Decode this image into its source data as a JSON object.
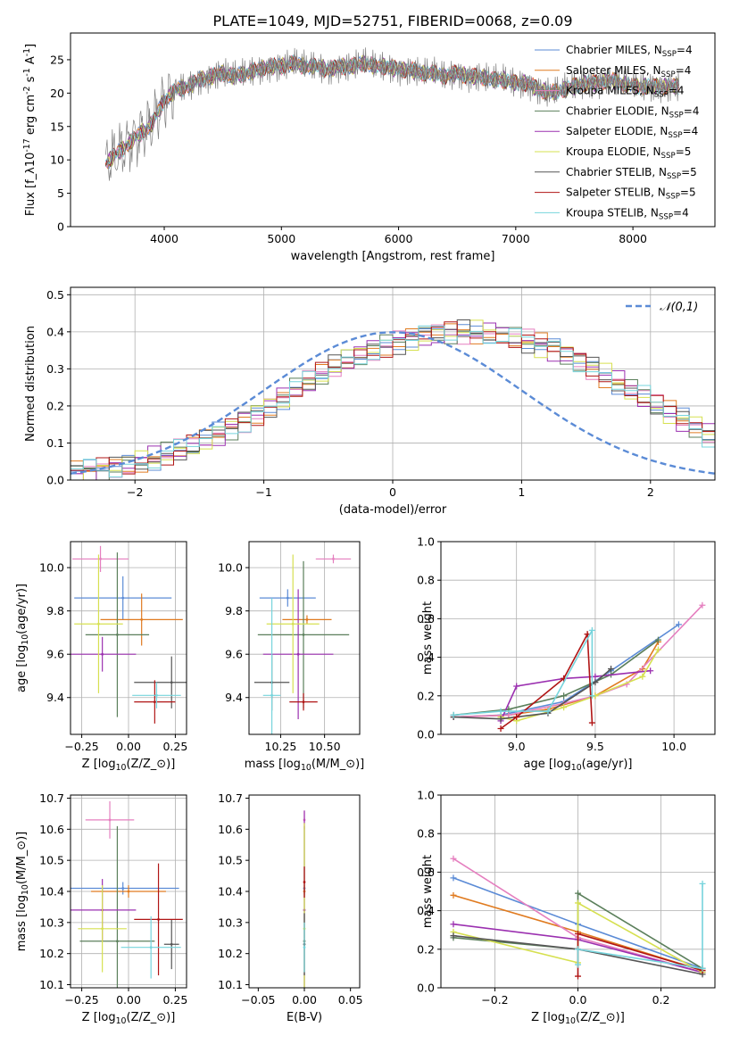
{
  "figure": {
    "title": "PLATE=1049, MJD=52751, FIBERID=0068, z=0.09"
  },
  "palette": {
    "Chabrier MILES": "#5b8bd6",
    "Salpeter MILES": "#e07b20",
    "Kroupa MILES": "#e57fbf",
    "Chabrier ELODIE": "#5b7f5b",
    "Salpeter ELODIE": "#9b30b0",
    "Kroupa ELODIE": "#d6e050",
    "Chabrier STELIB": "#555555",
    "Salpeter STELIB": "#b01515",
    "Kroupa STELIB": "#76d4dc"
  },
  "chart_data": [
    {
      "id": "spectrum",
      "type": "line",
      "xlabel": "wavelength [Angstrom, rest frame]",
      "ylabel": "Flux [f_λ10^{-17} erg cm^{-2} s^{-1} A^{-1}]",
      "xlim": [
        3200,
        8700
      ],
      "ylim": [
        0,
        29
      ],
      "xticks": [
        4000,
        5000,
        6000,
        7000,
        8000
      ],
      "yticks": [
        0,
        5,
        10,
        15,
        20,
        25
      ],
      "grid": false,
      "legend_position": "top-right",
      "legend": [
        {
          "model": "Chabrier MILES",
          "n": "4"
        },
        {
          "model": "Salpeter MILES",
          "n": "4"
        },
        {
          "model": "Kroupa MILES",
          "n": "4"
        },
        {
          "model": "Chabrier ELODIE",
          "n": "4"
        },
        {
          "model": "Salpeter ELODIE",
          "n": "4"
        },
        {
          "model": "Kroupa ELODIE",
          "n": "5"
        },
        {
          "model": "Chabrier STELIB",
          "n": "5"
        },
        {
          "model": "Salpeter STELIB",
          "n": "5"
        },
        {
          "model": "Kroupa STELIB",
          "n": "4"
        }
      ],
      "data_series": {
        "name": "data",
        "x": [
          3500,
          3600,
          3700,
          3800,
          3900,
          4000,
          4100,
          4200,
          4300,
          4400,
          4500,
          4600,
          4700,
          4800,
          4900,
          5000,
          5100,
          5200,
          5300,
          5400,
          5500,
          5600,
          5700,
          5800,
          5900,
          6000,
          6100,
          6200,
          6300,
          6400,
          6500,
          6600,
          6700,
          6800,
          6900,
          7000,
          7100,
          7200,
          7300,
          7400,
          7500,
          7600,
          7700,
          7800,
          7900,
          8000,
          8100,
          8200,
          8300,
          8400
        ],
        "y": [
          9.5,
          11,
          12.5,
          14,
          15.5,
          19,
          20.5,
          21,
          22,
          22.5,
          23,
          22.5,
          23,
          23.5,
          24,
          24,
          24.5,
          24,
          24,
          23.5,
          24,
          24,
          24.5,
          24,
          24,
          23.5,
          23.5,
          23,
          23,
          22.5,
          23,
          22.5,
          22.5,
          22,
          22,
          21.5,
          21.5,
          20.5,
          20,
          20.5,
          21,
          21.5,
          21.5,
          22,
          21.5,
          21,
          21,
          21,
          21,
          21
        ]
      }
    },
    {
      "id": "residuals",
      "type": "line",
      "xlabel": "(data-model)/error",
      "ylabel": "Normed distribution",
      "xlim": [
        -2.5,
        2.5
      ],
      "ylim": [
        0,
        0.52
      ],
      "xticks": [
        -2,
        -1,
        0,
        1,
        2
      ],
      "yticks": [
        0.0,
        0.1,
        0.2,
        0.3,
        0.4,
        0.5
      ],
      "grid": true,
      "legend_position": "top-right",
      "legend_label": "𝒩(0,1)",
      "reference_curve": {
        "mean": 0,
        "sigma": 1
      },
      "histogram": {
        "x_start": -2.5,
        "bin_width": 0.1,
        "values": [
          0.024,
          0.026,
          0.03,
          0.035,
          0.042,
          0.05,
          0.058,
          0.068,
          0.08,
          0.092,
          0.108,
          0.124,
          0.142,
          0.16,
          0.18,
          0.2,
          0.222,
          0.244,
          0.264,
          0.284,
          0.304,
          0.322,
          0.338,
          0.352,
          0.364,
          0.374,
          0.383,
          0.39,
          0.394,
          0.397,
          0.398,
          0.397,
          0.394,
          0.39,
          0.383,
          0.374,
          0.364,
          0.352,
          0.338,
          0.322,
          0.304,
          0.284,
          0.264,
          0.244,
          0.222,
          0.2,
          0.18,
          0.16,
          0.142,
          0.124
        ]
      }
    },
    {
      "id": "age-vs-Z",
      "type": "scatter",
      "xlabel": "Z [log_{10}(Z/Z_⊙)]",
      "ylabel": "age  [log_{10}(age/yr)]",
      "xlim": [
        -0.31,
        0.31
      ],
      "ylim": [
        9.23,
        10.12
      ],
      "xticks": [
        -0.25,
        0.0,
        0.25
      ],
      "xtick_labels": [
        "−0.25",
        "0.00",
        "0.25"
      ],
      "yticks": [
        9.4,
        9.6,
        9.8,
        10.0
      ],
      "grid": true,
      "points": [
        {
          "model": "Chabrier MILES",
          "x": -0.03,
          "y": 9.86,
          "xerr": 0.26,
          "yerr": 0.1
        },
        {
          "model": "Salpeter MILES",
          "x": 0.07,
          "y": 9.76,
          "xerr": 0.22,
          "yerr": 0.12
        },
        {
          "model": "Kroupa MILES",
          "x": -0.15,
          "y": 10.04,
          "xerr": 0.15,
          "yerr": 0.06
        },
        {
          "model": "Chabrier ELODIE",
          "x": -0.06,
          "y": 9.69,
          "xerr": 0.17,
          "yerr": 0.38
        },
        {
          "model": "Salpeter ELODIE",
          "x": -0.14,
          "y": 9.6,
          "xerr": 0.18,
          "yerr": 0.08
        },
        {
          "model": "Kroupa ELODIE",
          "x": -0.16,
          "y": 9.74,
          "xerr": 0.13,
          "yerr": 0.32
        },
        {
          "model": "Chabrier STELIB",
          "x": 0.23,
          "y": 9.47,
          "xerr": 0.2,
          "yerr": 0.12
        },
        {
          "model": "Salpeter STELIB",
          "x": 0.14,
          "y": 9.38,
          "xerr": 0.11,
          "yerr": 0.1
        },
        {
          "model": "Kroupa STELIB",
          "x": 0.15,
          "y": 9.41,
          "xerr": 0.13,
          "yerr": 0.06
        }
      ]
    },
    {
      "id": "age-vs-mass",
      "type": "scatter",
      "xlabel": "mass [log_{10}(M/M_⊙)]",
      "ylabel": "",
      "xlim": [
        10.07,
        10.7
      ],
      "ylim": [
        9.23,
        10.12
      ],
      "xticks": [
        10.25,
        10.5
      ],
      "xtick_labels": [
        "10.25",
        "10.50"
      ],
      "yticks": [
        9.4,
        9.6,
        9.8,
        10.0
      ],
      "grid": true,
      "points": [
        {
          "model": "Chabrier MILES",
          "x": 10.29,
          "y": 9.86,
          "xerr": 0.16,
          "yerr": 0.04
        },
        {
          "model": "Salpeter MILES",
          "x": 10.4,
          "y": 9.76,
          "xerr": 0.14,
          "yerr": 0.02
        },
        {
          "model": "Kroupa MILES",
          "x": 10.55,
          "y": 10.04,
          "xerr": 0.1,
          "yerr": 0.02
        },
        {
          "model": "Chabrier ELODIE",
          "x": 10.38,
          "y": 9.69,
          "xerr": 0.26,
          "yerr": 0.34
        },
        {
          "model": "Salpeter ELODIE",
          "x": 10.35,
          "y": 9.6,
          "xerr": 0.2,
          "yerr": 0.3
        },
        {
          "model": "Kroupa ELODIE",
          "x": 10.32,
          "y": 9.74,
          "xerr": 0.15,
          "yerr": 0.32
        },
        {
          "model": "Chabrier STELIB",
          "x": 10.2,
          "y": 9.47,
          "xerr": 0.1,
          "yerr": 0.13
        },
        {
          "model": "Salpeter STELIB",
          "x": 10.38,
          "y": 9.38,
          "xerr": 0.08,
          "yerr": 0.04
        },
        {
          "model": "Kroupa STELIB",
          "x": 10.2,
          "y": 9.41,
          "xerr": 0.05,
          "yerr": 0.45
        }
      ]
    },
    {
      "id": "weight-vs-age",
      "type": "line",
      "xlabel": "age  [log_{10}(age/yr)]",
      "ylabel": "mass weight",
      "xlim": [
        8.52,
        10.26
      ],
      "ylim": [
        0,
        1
      ],
      "xticks": [
        9.0,
        9.5,
        10.0
      ],
      "xtick_labels": [
        "9.0",
        "9.5",
        "10.0"
      ],
      "yticks": [
        0.0,
        0.2,
        0.4,
        0.6,
        0.8,
        1.0
      ],
      "grid": true,
      "series": [
        {
          "model": "Chabrier MILES",
          "x": [
            8.6,
            8.9,
            9.3,
            9.6,
            10.03
          ],
          "y": [
            0.09,
            0.1,
            0.17,
            0.33,
            0.57
          ]
        },
        {
          "model": "Salpeter MILES",
          "x": [
            8.6,
            8.95,
            9.2,
            9.5,
            9.8,
            9.9
          ],
          "y": [
            0.09,
            0.1,
            0.13,
            0.2,
            0.34,
            0.48
          ]
        },
        {
          "model": "Kroupa MILES",
          "x": [
            8.6,
            8.95,
            9.3,
            9.5,
            9.7,
            10.18
          ],
          "y": [
            0.09,
            0.1,
            0.16,
            0.2,
            0.26,
            0.67
          ]
        },
        {
          "model": "Chabrier ELODIE",
          "x": [
            8.6,
            8.95,
            9.3,
            9.6,
            9.9
          ],
          "y": [
            0.1,
            0.13,
            0.2,
            0.31,
            0.49
          ]
        },
        {
          "model": "Salpeter ELODIE",
          "x": [
            8.9,
            9.0,
            9.3,
            9.5,
            9.85
          ],
          "y": [
            0.07,
            0.25,
            0.29,
            0.3,
            0.33
          ]
        },
        {
          "model": "Kroupa ELODIE",
          "x": [
            8.9,
            9.0,
            9.3,
            9.5,
            9.8,
            9.9
          ],
          "y": [
            0.09,
            0.07,
            0.14,
            0.2,
            0.3,
            0.44
          ]
        },
        {
          "model": "Chabrier STELIB",
          "x": [
            8.6,
            8.9,
            9.2,
            9.5,
            9.6
          ],
          "y": [
            0.09,
            0.08,
            0.11,
            0.27,
            0.34
          ]
        },
        {
          "model": "Salpeter STELIB",
          "x": [
            8.9,
            9.0,
            9.3,
            9.45,
            9.48
          ],
          "y": [
            0.03,
            0.09,
            0.29,
            0.52,
            0.06
          ]
        },
        {
          "model": "Kroupa STELIB",
          "x": [
            8.6,
            8.9,
            9.2,
            9.48,
            9.48
          ],
          "y": [
            0.1,
            0.12,
            0.12,
            0.54,
            0.2
          ]
        }
      ]
    },
    {
      "id": "mass-vs-Z",
      "type": "scatter",
      "xlabel": "Z [log_{10}(Z/Z_⊙)]",
      "ylabel": "mass [log_{10}(M/M_⊙)]",
      "xlim": [
        -0.31,
        0.31
      ],
      "ylim": [
        10.09,
        10.71
      ],
      "xticks": [
        -0.25,
        0.0,
        0.25
      ],
      "xtick_labels": [
        "−0.25",
        "0.00",
        "0.25"
      ],
      "yticks": [
        10.1,
        10.2,
        10.3,
        10.4,
        10.5,
        10.6,
        10.7
      ],
      "grid": true,
      "points": [
        {
          "model": "Chabrier MILES",
          "x": -0.03,
          "y": 10.41,
          "xerr": 0.3,
          "yerr": 0.02
        },
        {
          "model": "Salpeter MILES",
          "x": 0.0,
          "y": 10.4,
          "xerr": 0.2,
          "yerr": 0.02
        },
        {
          "model": "Kroupa MILES",
          "x": -0.1,
          "y": 10.63,
          "xerr": 0.13,
          "yerr": 0.06
        },
        {
          "model": "Chabrier ELODIE",
          "x": -0.06,
          "y": 10.24,
          "xerr": 0.2,
          "yerr": 0.37
        },
        {
          "model": "Salpeter ELODIE",
          "x": -0.14,
          "y": 10.34,
          "xerr": 0.18,
          "yerr": 0.1
        },
        {
          "model": "Kroupa ELODIE",
          "x": -0.14,
          "y": 10.28,
          "xerr": 0.13,
          "yerr": 0.14
        },
        {
          "model": "Chabrier STELIB",
          "x": 0.23,
          "y": 10.23,
          "xerr": 0.04,
          "yerr": 0.08
        },
        {
          "model": "Salpeter STELIB",
          "x": 0.16,
          "y": 10.31,
          "xerr": 0.13,
          "yerr": 0.18
        },
        {
          "model": "Kroupa STELIB",
          "x": 0.12,
          "y": 10.22,
          "xerr": 0.16,
          "yerr": 0.1
        }
      ]
    },
    {
      "id": "mass-vs-EBV",
      "type": "scatter",
      "xlabel": "E(B-V)",
      "ylabel": "",
      "xlim": [
        -0.06,
        0.06
      ],
      "ylim": [
        10.09,
        10.71
      ],
      "xticks": [
        -0.05,
        0.0,
        0.05
      ],
      "xtick_labels": [
        "−0.05",
        "0.00",
        "0.05"
      ],
      "yticks": [
        10.1,
        10.2,
        10.3,
        10.4,
        10.5,
        10.6,
        10.7
      ],
      "grid": false,
      "points": [
        {
          "model": "Chabrier MILES",
          "x": 0.0,
          "y": 10.41,
          "xerr": 0,
          "yerr": 0.02
        },
        {
          "model": "Salpeter MILES",
          "x": 0.0,
          "y": 10.4,
          "xerr": 0,
          "yerr": 0.02
        },
        {
          "model": "Kroupa MILES",
          "x": 0.0,
          "y": 10.63,
          "xerr": 0,
          "yerr": 0.03
        },
        {
          "model": "Chabrier ELODIE",
          "x": 0.0,
          "y": 10.24,
          "xerr": 0,
          "yerr": 0.37
        },
        {
          "model": "Salpeter ELODIE",
          "x": 0.0,
          "y": 10.34,
          "xerr": 0,
          "yerr": 0.32
        },
        {
          "model": "Kroupa ELODIE",
          "x": 0.0,
          "y": 10.28,
          "xerr": 0,
          "yerr": 0.34
        },
        {
          "model": "Chabrier STELIB",
          "x": 0.0,
          "y": 10.23,
          "xerr": 0,
          "yerr": 0.1
        },
        {
          "model": "Salpeter STELIB",
          "x": 0.0,
          "y": 10.43,
          "xerr": 0,
          "yerr": 0.05
        },
        {
          "model": "Kroupa STELIB",
          "x": 0.0,
          "y": 10.22,
          "xerr": 0,
          "yerr": 0.08
        }
      ]
    },
    {
      "id": "weight-vs-Z",
      "type": "line",
      "xlabel": "Z [log_{10}(Z/Z_⊙)]",
      "ylabel": "mass weight",
      "xlim": [
        -0.33,
        0.33
      ],
      "ylim": [
        0,
        1
      ],
      "xticks": [
        -0.2,
        0.0,
        0.2
      ],
      "xtick_labels": [
        "−0.2",
        "0.0",
        "0.2"
      ],
      "yticks": [
        0.0,
        0.2,
        0.4,
        0.6,
        0.8,
        1.0
      ],
      "grid": true,
      "series": [
        {
          "model": "Chabrier MILES",
          "x": [
            -0.3,
            0.0,
            0.3
          ],
          "y": [
            0.57,
            0.33,
            0.1
          ]
        },
        {
          "model": "Salpeter MILES",
          "x": [
            -0.3,
            0.0,
            0.3
          ],
          "y": [
            0.48,
            0.29,
            0.09
          ]
        },
        {
          "model": "Kroupa MILES",
          "x": [
            -0.3,
            0.0,
            0.3
          ],
          "y": [
            0.67,
            0.26,
            0.08
          ]
        },
        {
          "model": "Chabrier ELODIE",
          "x": [
            -0.3,
            0.0,
            0.0,
            0.3
          ],
          "y": [
            0.26,
            0.2,
            0.49,
            0.1
          ]
        },
        {
          "model": "Salpeter ELODIE",
          "x": [
            -0.3,
            0.0,
            0.3
          ],
          "y": [
            0.33,
            0.25,
            0.08
          ]
        },
        {
          "model": "Kroupa ELODIE",
          "x": [
            -0.3,
            0.0,
            0.0,
            0.3
          ],
          "y": [
            0.29,
            0.13,
            0.44,
            0.08
          ]
        },
        {
          "model": "Chabrier STELIB",
          "x": [
            -0.3,
            0.0,
            0.3
          ],
          "y": [
            0.27,
            0.2,
            0.07
          ]
        },
        {
          "model": "Salpeter STELIB",
          "x": [
            0.0,
            0.0,
            0.3
          ],
          "y": [
            0.06,
            0.28,
            0.09
          ]
        },
        {
          "model": "Kroupa STELIB",
          "x": [
            0.0,
            0.0,
            0.3,
            0.3
          ],
          "y": [
            0.12,
            0.2,
            0.1,
            0.54
          ]
        }
      ]
    }
  ]
}
